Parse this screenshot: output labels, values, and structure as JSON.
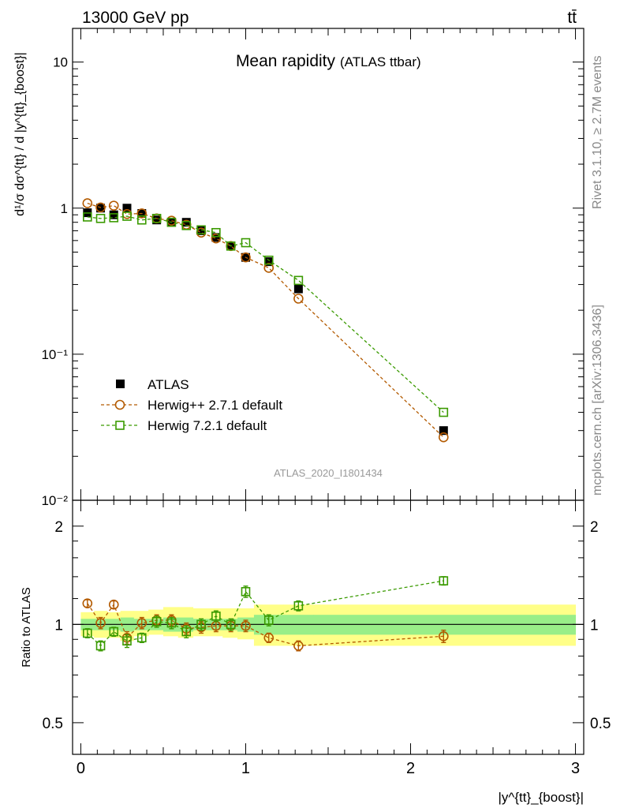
{
  "header": {
    "energy": "13000 GeV pp",
    "process": "tt̄",
    "side_rivet": "Rivet 3.1.10, ≥ 2.7M events",
    "side_mcplots": "mcplots.cern.ch [arXiv:1306.3436]"
  },
  "chart_data": [
    {
      "type": "scatter",
      "title": "Mean rapidity",
      "subtitle": "(ATLAS ttbar)",
      "analysis_label": "ATLAS_2020_I1801434",
      "ylabel": "d¹/σ dσ^{tt} / d |y^{tt}_{boost}|",
      "yscale": "log",
      "ylim": [
        0.01,
        17
      ],
      "xlim": [
        -0.05,
        3.05
      ],
      "y_tick_labels": [
        "10⁻²",
        "10⁻¹",
        "1",
        "10"
      ],
      "legend_position": "lower-left",
      "series": [
        {
          "name": "ATLAS",
          "marker": "filled-square",
          "color": "#000000",
          "x": [
            0.04,
            0.12,
            0.2,
            0.28,
            0.37,
            0.46,
            0.55,
            0.64,
            0.73,
            0.82,
            0.91,
            1.0,
            1.14,
            1.32,
            2.2
          ],
          "y": [
            0.93,
            1.0,
            0.9,
            1.0,
            0.92,
            0.83,
            0.8,
            0.8,
            0.7,
            0.63,
            0.55,
            0.46,
            0.43,
            0.28,
            0.03
          ]
        },
        {
          "name": "Herwig++ 2.7.1 default",
          "marker": "open-circle",
          "color": "#b35a00",
          "x": [
            0.04,
            0.12,
            0.2,
            0.28,
            0.37,
            0.46,
            0.55,
            0.64,
            0.73,
            0.82,
            0.91,
            1.0,
            1.14,
            1.32,
            2.2
          ],
          "y": [
            1.08,
            1.01,
            1.04,
            0.91,
            0.92,
            0.85,
            0.82,
            0.77,
            0.68,
            0.62,
            0.55,
            0.46,
            0.39,
            0.24,
            0.027
          ]
        },
        {
          "name": "Herwig 7.2.1 default",
          "marker": "open-square",
          "color": "#3a9a00",
          "x": [
            0.04,
            0.12,
            0.2,
            0.28,
            0.37,
            0.46,
            0.55,
            0.64,
            0.73,
            0.82,
            0.91,
            1.0,
            1.14,
            1.32,
            2.2
          ],
          "y": [
            0.87,
            0.85,
            0.86,
            0.88,
            0.83,
            0.85,
            0.8,
            0.76,
            0.71,
            0.68,
            0.55,
            0.58,
            0.44,
            0.32,
            0.04
          ]
        }
      ]
    },
    {
      "type": "scatter",
      "ylabel": "Ratio to ATLAS",
      "xlabel": "|y^{tt}_{boost}|",
      "yscale": "log",
      "ylim": [
        0.4,
        2.4
      ],
      "xlim": [
        -0.05,
        3.05
      ],
      "x_tick_labels": [
        "0",
        "1",
        "2",
        "3"
      ],
      "y_tick_labels": [
        "0.5",
        "1",
        "2"
      ],
      "bands": {
        "edges": [
          0,
          0.08,
          0.16,
          0.24,
          0.32,
          0.41,
          0.5,
          0.59,
          0.68,
          0.77,
          0.86,
          0.95,
          1.05,
          1.23,
          1.41,
          3.0
        ],
        "green_low": [
          0.96,
          0.96,
          0.96,
          0.95,
          0.96,
          0.96,
          0.95,
          0.95,
          0.96,
          0.96,
          0.96,
          0.95,
          0.93,
          0.93,
          0.93
        ],
        "green_high": [
          1.04,
          1.04,
          1.04,
          1.05,
          1.04,
          1.04,
          1.05,
          1.05,
          1.04,
          1.04,
          1.04,
          1.05,
          1.07,
          1.07,
          1.07
        ],
        "yellow_low": [
          0.92,
          0.91,
          0.91,
          0.89,
          0.92,
          0.93,
          0.92,
          0.91,
          0.92,
          0.92,
          0.91,
          0.9,
          0.86,
          0.86,
          0.86
        ],
        "yellow_high": [
          1.09,
          1.1,
          1.09,
          1.1,
          1.1,
          1.11,
          1.13,
          1.13,
          1.12,
          1.12,
          1.12,
          1.12,
          1.15,
          1.15,
          1.15
        ]
      },
      "series": [
        {
          "name": "Herwig++ 2.7.1 default",
          "color": "#b35a00",
          "x": [
            0.04,
            0.12,
            0.2,
            0.28,
            0.37,
            0.46,
            0.55,
            0.64,
            0.73,
            0.82,
            0.91,
            1.0,
            1.14,
            1.32,
            2.2
          ],
          "y": [
            1.16,
            1.01,
            1.15,
            0.91,
            1.01,
            1.03,
            1.03,
            0.97,
            0.98,
            0.99,
            0.99,
            0.99,
            0.91,
            0.86,
            0.92
          ],
          "err": [
            0.03,
            0.04,
            0.03,
            0.04,
            0.04,
            0.04,
            0.04,
            0.04,
            0.04,
            0.04,
            0.04,
            0.04,
            0.03,
            0.03,
            0.04
          ]
        },
        {
          "name": "Herwig 7.2.1 default",
          "color": "#3a9a00",
          "x": [
            0.04,
            0.12,
            0.2,
            0.28,
            0.37,
            0.46,
            0.55,
            0.64,
            0.73,
            0.82,
            0.91,
            1.0,
            1.14,
            1.32,
            2.2
          ],
          "y": [
            0.94,
            0.86,
            0.95,
            0.89,
            0.91,
            1.02,
            1.01,
            0.95,
            1.0,
            1.06,
            1.0,
            1.26,
            1.03,
            1.14,
            1.36
          ],
          "err": [
            0.03,
            0.03,
            0.03,
            0.04,
            0.03,
            0.04,
            0.04,
            0.04,
            0.04,
            0.04,
            0.04,
            0.05,
            0.04,
            0.04,
            0.04
          ]
        }
      ]
    }
  ]
}
